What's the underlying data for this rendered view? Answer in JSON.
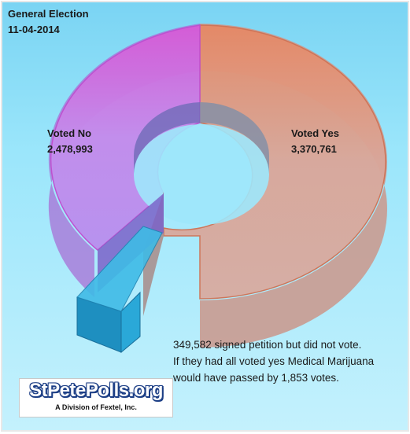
{
  "title": {
    "line1": "General Election",
    "line2": "11-04-2014"
  },
  "chart_data": {
    "type": "pie",
    "style": "3d-donut",
    "categories": [
      "Voted No",
      "Voted Yes",
      "signed petition but did not vote"
    ],
    "values": [
      2478993,
      3370761,
      349582
    ],
    "labels": [
      {
        "name": "Voted No",
        "value": "2,478,993"
      },
      {
        "name": "Voted Yes",
        "value": "3,370,761"
      }
    ],
    "colors": {
      "voted_no": "#cc55dd",
      "voted_yes": "#e08a6f",
      "petition": "#2aa8d8",
      "background": "#8fe0f8"
    }
  },
  "note": {
    "line1": "349,582 signed petition but did not vote.",
    "line2": "If they had all voted yes Medical Marijuana",
    "line3": "would have passed by 1,853 votes."
  },
  "logo": {
    "name": "StPetePolls.org",
    "tagline": "A Division of Fextel, Inc."
  }
}
